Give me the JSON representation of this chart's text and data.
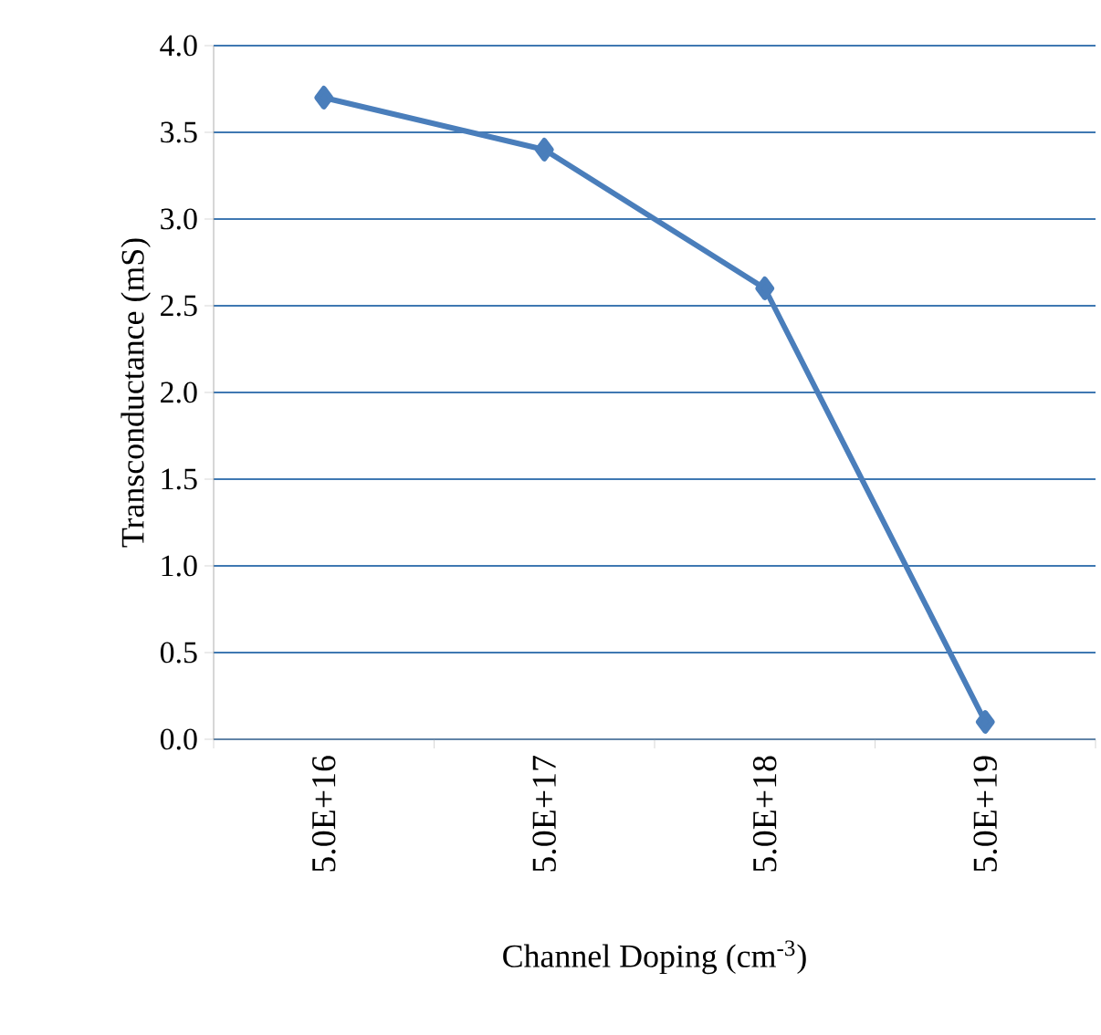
{
  "chart_data": {
    "type": "line",
    "xlabel": "Channel Doping (cm$^{-3}$)",
    "ylabel": "Transconductance (mS)",
    "categories": [
      "5.0E+16",
      "5.0E+17",
      "5.0E+18",
      "5.0E+19"
    ],
    "series": [
      {
        "color": "#4a7ebb",
        "values": [
          3.7,
          3.4,
          2.6,
          0.1
        ]
      }
    ],
    "ylim": [
      0,
      4
    ],
    "yticks": [
      {
        "value": 0,
        "label": "0.0"
      },
      {
        "value": 0.5,
        "label": "0.5"
      },
      {
        "value": 1,
        "label": "1.0"
      },
      {
        "value": 1.5,
        "label": "1.5"
      },
      {
        "value": 2,
        "label": "2.0"
      },
      {
        "value": 2.5,
        "label": "2.5"
      },
      {
        "value": 3,
        "label": "3.0"
      },
      {
        "value": 3.5,
        "label": "3.5"
      },
      {
        "value": 4,
        "label": "4.0"
      }
    ],
    "grid": "y",
    "marker": "diamond",
    "line_style": "solid"
  }
}
